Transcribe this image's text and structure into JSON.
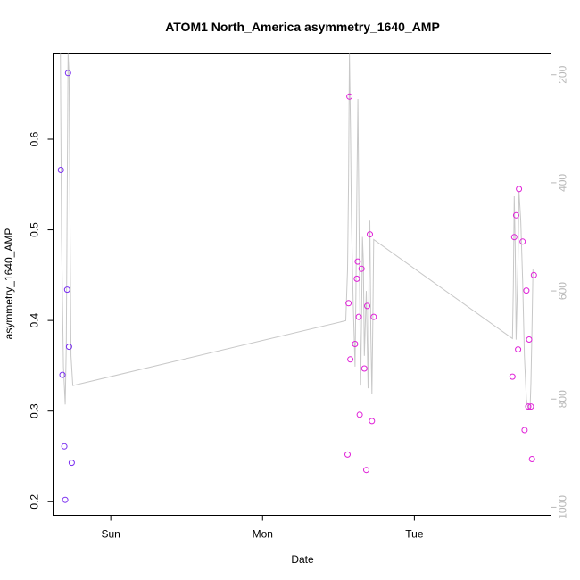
{
  "chart_data": {
    "type": "scatter",
    "title": "ATOM1 North_America asymmetry_1640_AMP",
    "xlabel": "Date",
    "ylabel": "asymmetry_1640_AMP",
    "x_unit": "days",
    "x_ticks": [
      {
        "value": 1.0,
        "label": "Sun"
      },
      {
        "value": 2.0,
        "label": "Mon"
      },
      {
        "value": 3.0,
        "label": "Tue"
      }
    ],
    "xlim": [
      0.62,
      3.9
    ],
    "ylim": [
      0.185,
      0.695
    ],
    "y_ticks": [
      0.2,
      0.3,
      0.4,
      0.5,
      0.6
    ],
    "secondary_axis": {
      "side": "right",
      "ylim": [
        1015,
        160
      ],
      "ticks": [
        200,
        400,
        600,
        800,
        1000
      ],
      "color": "#b8b8b8"
    },
    "points": [
      {
        "x": 0.671,
        "y": 0.566,
        "color": "#7b2ff0"
      },
      {
        "x": 0.682,
        "y": 0.34,
        "color": "#7b2ff0"
      },
      {
        "x": 0.694,
        "y": 0.261,
        "color": "#7b2ff0"
      },
      {
        "x": 0.7,
        "y": 0.202,
        "color": "#7b2ff0"
      },
      {
        "x": 0.713,
        "y": 0.434,
        "color": "#7b2ff0"
      },
      {
        "x": 0.719,
        "y": 0.673,
        "color": "#7b2ff0"
      },
      {
        "x": 0.725,
        "y": 0.371,
        "color": "#7b2ff0"
      },
      {
        "x": 0.743,
        "y": 0.243,
        "color": "#7b2ff0"
      },
      {
        "x": 2.56,
        "y": 0.252,
        "color": "#e020d8"
      },
      {
        "x": 2.566,
        "y": 0.419,
        "color": "#e020d8"
      },
      {
        "x": 2.572,
        "y": 0.647,
        "color": "#e020d8"
      },
      {
        "x": 2.578,
        "y": 0.357,
        "color": "#e020d8"
      },
      {
        "x": 2.609,
        "y": 0.374,
        "color": "#e020d8"
      },
      {
        "x": 2.621,
        "y": 0.446,
        "color": "#e020d8"
      },
      {
        "x": 2.627,
        "y": 0.465,
        "color": "#e020d8"
      },
      {
        "x": 2.634,
        "y": 0.404,
        "color": "#e020d8"
      },
      {
        "x": 2.64,
        "y": 0.296,
        "color": "#e020d8"
      },
      {
        "x": 2.652,
        "y": 0.457,
        "color": "#e020d8"
      },
      {
        "x": 2.67,
        "y": 0.347,
        "color": "#e020d8"
      },
      {
        "x": 2.683,
        "y": 0.235,
        "color": "#e020d8"
      },
      {
        "x": 2.689,
        "y": 0.416,
        "color": "#e020d8"
      },
      {
        "x": 2.707,
        "y": 0.495,
        "color": "#e020d8"
      },
      {
        "x": 2.72,
        "y": 0.289,
        "color": "#e020d8"
      },
      {
        "x": 2.732,
        "y": 0.404,
        "color": "#e020d8"
      },
      {
        "x": 3.646,
        "y": 0.338,
        "color": "#e020d8"
      },
      {
        "x": 3.658,
        "y": 0.492,
        "color": "#e020d8"
      },
      {
        "x": 3.67,
        "y": 0.516,
        "color": "#e020d8"
      },
      {
        "x": 3.683,
        "y": 0.368,
        "color": "#e020d8"
      },
      {
        "x": 3.689,
        "y": 0.545,
        "color": "#e020d8"
      },
      {
        "x": 3.713,
        "y": 0.487,
        "color": "#e020d8"
      },
      {
        "x": 3.726,
        "y": 0.279,
        "color": "#e020d8"
      },
      {
        "x": 3.738,
        "y": 0.433,
        "color": "#e020d8"
      },
      {
        "x": 3.75,
        "y": 0.305,
        "color": "#e020d8"
      },
      {
        "x": 3.756,
        "y": 0.379,
        "color": "#e020d8"
      },
      {
        "x": 3.768,
        "y": 0.305,
        "color": "#e020d8"
      },
      {
        "x": 3.775,
        "y": 0.247,
        "color": "#e020d8"
      },
      {
        "x": 3.787,
        "y": 0.45,
        "color": "#e020d8"
      }
    ],
    "line_series": {
      "axis": "right",
      "color": "#c8c8c8",
      "points": [
        [
          0.668,
          160
        ],
        [
          0.676,
          500
        ],
        [
          0.688,
          740
        ],
        [
          0.7,
          810
        ],
        [
          0.707,
          700
        ],
        [
          0.713,
          430
        ],
        [
          0.719,
          160
        ],
        [
          0.725,
          200
        ],
        [
          0.732,
          500
        ],
        [
          0.738,
          720
        ],
        [
          0.75,
          775
        ],
        [
          2.548,
          655
        ],
        [
          2.56,
          560
        ],
        [
          2.566,
          400
        ],
        [
          2.572,
          160
        ],
        [
          2.579,
          300
        ],
        [
          2.585,
          460
        ],
        [
          2.597,
          620
        ],
        [
          2.609,
          740
        ],
        [
          2.615,
          600
        ],
        [
          2.621,
          420
        ],
        [
          2.628,
          245
        ],
        [
          2.634,
          430
        ],
        [
          2.64,
          610
        ],
        [
          2.646,
          775
        ],
        [
          2.652,
          650
        ],
        [
          2.658,
          500
        ],
        [
          2.664,
          545
        ],
        [
          2.67,
          720
        ],
        [
          2.683,
          600
        ],
        [
          2.695,
          780
        ],
        [
          2.701,
          580
        ],
        [
          2.707,
          470
        ],
        [
          2.713,
          680
        ],
        [
          2.72,
          790
        ],
        [
          2.726,
          660
        ],
        [
          2.732,
          505
        ],
        [
          3.646,
          688
        ],
        [
          3.652,
          590
        ],
        [
          3.658,
          425
        ],
        [
          3.664,
          520
        ],
        [
          3.67,
          690
        ],
        [
          3.683,
          540
        ],
        [
          3.689,
          415
        ],
        [
          3.701,
          470
        ],
        [
          3.713,
          580
        ],
        [
          3.725,
          720
        ],
        [
          3.738,
          800
        ],
        [
          3.75,
          820
        ],
        [
          3.762,
          820
        ],
        [
          3.768,
          770
        ],
        [
          3.775,
          670
        ],
        [
          3.781,
          560
        ]
      ]
    }
  }
}
